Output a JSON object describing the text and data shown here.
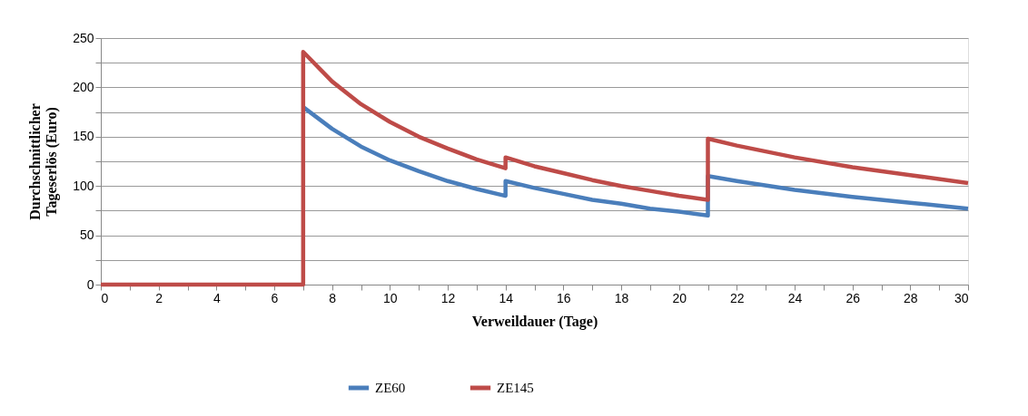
{
  "chart_data": {
    "type": "line",
    "xlabel": "Verweildauer (Tage)",
    "ylabel": "Durchschnittlicher Tageserlös (Euro)",
    "xlim": [
      0,
      30
    ],
    "ylim": [
      0,
      250
    ],
    "xticks": [
      0,
      {
        "value": 1,
        "label": null
      },
      2,
      {
        "value": 3,
        "label": null
      },
      4,
      {
        "value": 5,
        "label": null
      },
      6,
      {
        "value": 7,
        "label": null
      },
      8,
      {
        "value": 9,
        "label": null
      },
      10,
      {
        "value": 11,
        "label": null
      },
      12,
      {
        "value": 13,
        "label": null
      },
      14,
      {
        "value": 15,
        "label": null
      },
      16,
      {
        "value": 17,
        "label": null
      },
      18,
      {
        "value": 19,
        "label": null
      },
      20,
      {
        "value": 21,
        "label": null
      },
      22,
      {
        "value": 23,
        "label": null
      },
      24,
      {
        "value": 25,
        "label": null
      },
      26,
      {
        "value": 27,
        "label": null
      },
      28,
      {
        "value": 29,
        "label": null
      },
      30
    ],
    "yticks": [
      0,
      {
        "value": 25,
        "label": null
      },
      50,
      {
        "value": 75,
        "label": null
      },
      100,
      {
        "value": 125,
        "label": null
      },
      150,
      {
        "value": 175,
        "label": null
      },
      200,
      {
        "value": 225,
        "label": null
      },
      250
    ],
    "grid": "y",
    "legend": "bottom",
    "marker": "none",
    "line_style": "solid",
    "series": [
      {
        "name": "ZE60",
        "color": "#4a7ebb",
        "x": [
          7,
          8,
          9,
          10,
          11,
          12,
          13,
          14,
          14,
          15,
          16,
          17,
          18,
          19,
          20,
          21,
          21,
          22,
          24,
          26,
          28,
          30
        ],
        "values": [
          180,
          158,
          140,
          126,
          115,
          105,
          97,
          90,
          105,
          98,
          92,
          86,
          82,
          77,
          74,
          70,
          110,
          105,
          96,
          89,
          83,
          77
        ]
      },
      {
        "name": "ZE145",
        "color": "#be4b48",
        "x": [
          0,
          7,
          7,
          8,
          9,
          10,
          11,
          12,
          13,
          14,
          14,
          15,
          16,
          17,
          18,
          19,
          20,
          21,
          21,
          22,
          24,
          26,
          28,
          30
        ],
        "values": [
          0,
          0,
          236,
          206,
          183,
          165,
          150,
          138,
          127,
          118,
          129,
          120,
          113,
          106,
          100,
          95,
          90,
          86,
          148,
          141,
          129,
          119,
          111,
          103
        ]
      }
    ]
  }
}
